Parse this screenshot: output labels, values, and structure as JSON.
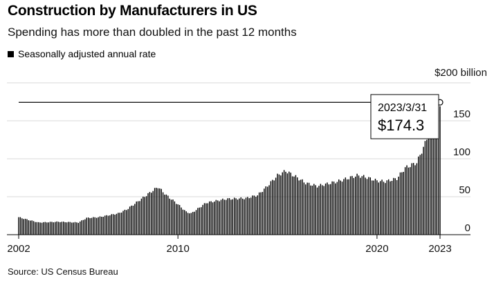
{
  "header": {
    "title": "Construction by Manufacturers in US",
    "subtitle": "Spending has more than doubled in the past 12 months",
    "legend_label": "Seasonally adjusted annual rate"
  },
  "footer": {
    "source": "Source: US Census Bureau"
  },
  "colors": {
    "bar": "#000000",
    "grid": "#d9d9d9",
    "text": "#111111"
  },
  "chart_data": {
    "type": "bar",
    "frequency": "monthly",
    "unit_label": "$200 billion",
    "ylim": [
      0,
      200
    ],
    "yticks": [
      0,
      50,
      100,
      150
    ],
    "xticks": [
      "2002",
      "2010",
      "2020",
      "2023"
    ],
    "x_start": "2002-01",
    "x_end": "2023-03",
    "grid": true,
    "annotation": {
      "date": "2023/3/31",
      "value_label": "$174.3",
      "value": 174.3
    },
    "reference_line": 174.3,
    "anchors": [
      [
        "2002-01",
        23
      ],
      [
        "2002-06",
        20
      ],
      [
        "2003-01",
        16
      ],
      [
        "2004-01",
        17
      ],
      [
        "2005-01",
        16
      ],
      [
        "2005-06",
        22
      ],
      [
        "2006-01",
        23
      ],
      [
        "2007-01",
        28
      ],
      [
        "2007-06",
        33
      ],
      [
        "2008-01",
        44
      ],
      [
        "2008-06",
        52
      ],
      [
        "2009-01",
        63
      ],
      [
        "2009-06",
        52
      ],
      [
        "2010-01",
        40
      ],
      [
        "2010-06",
        30
      ],
      [
        "2010-09",
        28
      ],
      [
        "2011-06",
        42
      ],
      [
        "2012-06",
        47
      ],
      [
        "2013-06",
        48
      ],
      [
        "2014-01",
        52
      ],
      [
        "2014-06",
        62
      ],
      [
        "2015-01",
        78
      ],
      [
        "2015-06",
        84
      ],
      [
        "2016-01",
        75
      ],
      [
        "2016-06",
        68
      ],
      [
        "2017-01",
        64
      ],
      [
        "2018-01",
        70
      ],
      [
        "2019-01",
        78
      ],
      [
        "2019-06",
        76
      ],
      [
        "2020-01",
        71
      ],
      [
        "2020-06",
        70
      ],
      [
        "2021-01",
        74
      ],
      [
        "2021-06",
        88
      ],
      [
        "2022-01",
        95
      ],
      [
        "2022-06",
        120
      ],
      [
        "2022-09",
        140
      ],
      [
        "2023-01",
        160
      ],
      [
        "2023-03",
        174.3
      ]
    ]
  }
}
